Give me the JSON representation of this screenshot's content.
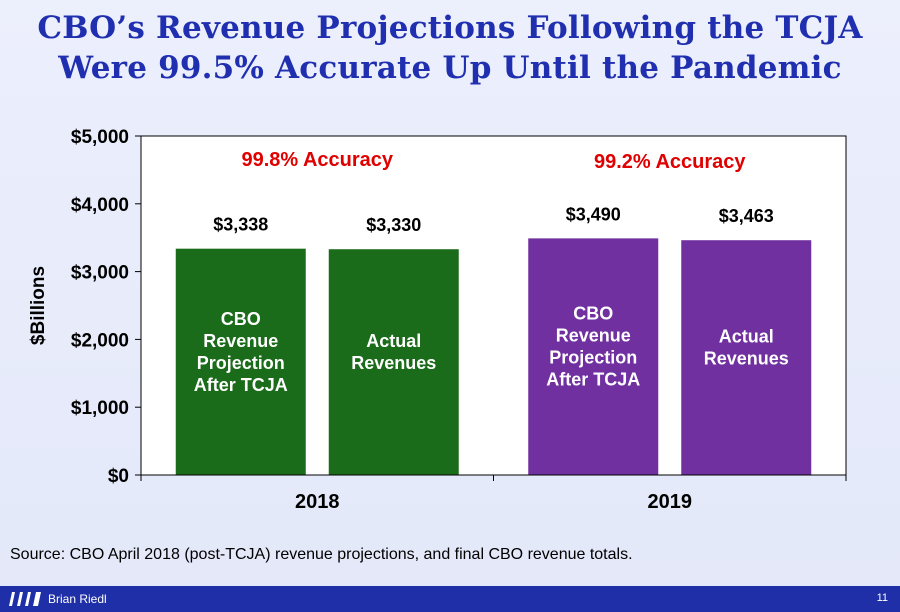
{
  "title": {
    "line1": "CBO’s Revenue Projections Following the TCJA",
    "line2": "Were 99.5% Accurate Up Until the Pandemic"
  },
  "chart_data": {
    "type": "bar",
    "ylabel": "$Billions",
    "ylim": [
      0,
      5000
    ],
    "yticks": [
      0,
      1000,
      2000,
      3000,
      4000,
      5000
    ],
    "ytick_labels": [
      "$0",
      "$1,000",
      "$2,000",
      "$3,000",
      "$4,000",
      "$5,000"
    ],
    "categories": [
      "2018",
      "2019"
    ],
    "groups": [
      {
        "category": "2018",
        "accuracy_label": "99.8% Accuracy",
        "bars": [
          {
            "name": "CBO Revenue Projection After TCJA",
            "inner_label": [
              "CBO",
              "Revenue",
              "Projection",
              "After TCJA"
            ],
            "value": 3338,
            "value_label": "$3,338",
            "color": "#1a6b1a"
          },
          {
            "name": "Actual Revenues",
            "inner_label": [
              "Actual",
              "Revenues"
            ],
            "value": 3330,
            "value_label": "$3,330",
            "color": "#1a6b1a"
          }
        ]
      },
      {
        "category": "2019",
        "accuracy_label": "99.2% Accuracy",
        "bars": [
          {
            "name": "CBO Revenue Projection After TCJA",
            "inner_label": [
              "CBO",
              "Revenue",
              "Projection",
              "After TCJA"
            ],
            "value": 3490,
            "value_label": "$3,490",
            "color": "#7030a0"
          },
          {
            "name": "Actual Revenues",
            "inner_label": [
              "Actual",
              "Revenues"
            ],
            "value": 3463,
            "value_label": "$3,463",
            "color": "#7030a0"
          }
        ]
      }
    ],
    "accuracy_color": "#e00000"
  },
  "source": "Source: CBO April 2018 (post-TCJA) revenue projections, and final CBO revenue totals.",
  "footer": {
    "author": "Brian Riedl",
    "page_number": "11"
  }
}
